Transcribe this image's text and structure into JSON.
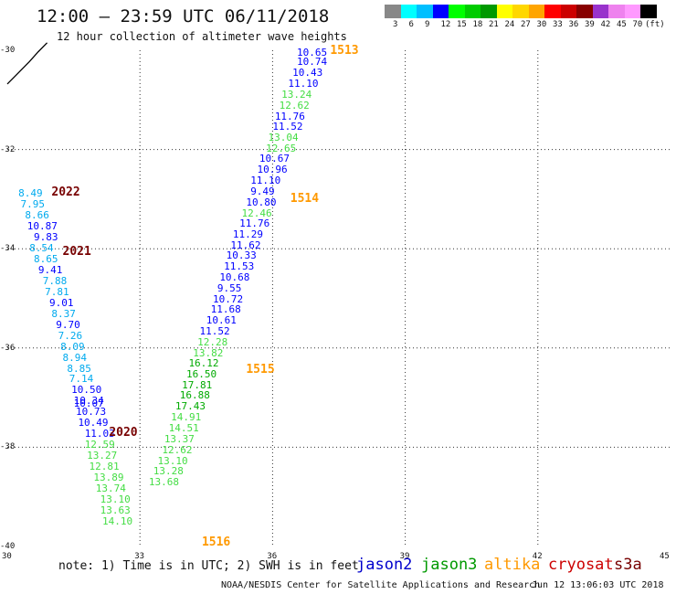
{
  "header": {
    "title": "12:00 – 23:59 UTC 06/11/2018",
    "subtitle": "12 hour collection of altimeter wave heights"
  },
  "legend": {
    "colors": [
      "#888888",
      "#00ffff",
      "#00bfff",
      "#0000ff",
      "#00ff00",
      "#00cc00",
      "#009900",
      "#ffff00",
      "#ffd700",
      "#ffa500",
      "#ff0000",
      "#cc0000",
      "#880000",
      "#9933cc",
      "#ee82ee",
      "#ff99ff",
      "#000000"
    ],
    "labels": [
      "3",
      "6",
      "9",
      "12",
      "15",
      "18",
      "21",
      "24",
      "27",
      "30",
      "33",
      "36",
      "39",
      "42",
      "45",
      "70",
      "(ft)"
    ]
  },
  "axes": {
    "x_ticks": [
      "30",
      "33",
      "36",
      "39",
      "42",
      "45"
    ],
    "y_ticks": [
      "-30",
      "-32",
      "-34",
      "-36",
      "-38",
      "-40"
    ]
  },
  "colors": {
    "jason2": "#0000cc",
    "jason3": "#009900",
    "altika": "#ff9900",
    "cryosat": "#cc0000",
    "s3a": "#770000"
  },
  "chart_data": {
    "type": "scatter",
    "x_range": [
      30,
      45
    ],
    "y_range": [
      -40,
      -30
    ],
    "grid": true,
    "pass_labels": [
      {
        "text": "1513",
        "lon": 37.3,
        "lat": -30.0,
        "sat": "altika"
      },
      {
        "text": "1514",
        "lon": 36.4,
        "lat": -32.98,
        "sat": "altika"
      },
      {
        "text": "1515",
        "lon": 35.4,
        "lat": -36.42,
        "sat": "altika"
      },
      {
        "text": "1516",
        "lon": 34.4,
        "lat": -39.9,
        "sat": "altika"
      },
      {
        "text": "2022",
        "lon": 31.0,
        "lat": -32.85,
        "sat": "s3a"
      },
      {
        "text": "2021",
        "lon": 31.25,
        "lat": -34.05,
        "sat": "s3a"
      },
      {
        "text": "2020",
        "lon": 32.3,
        "lat": -37.7,
        "sat": "s3a"
      }
    ],
    "tracks": [
      {
        "points": [
          {
            "lon": 36.55,
            "lat": -30.03,
            "text": "10.65",
            "color": "#0000ff"
          },
          {
            "lon": 36.55,
            "lat": -30.23,
            "text": "10.74",
            "color": "#0000ff"
          },
          {
            "lon": 36.45,
            "lat": -30.44,
            "text": "10.43",
            "color": "#0000ff"
          },
          {
            "lon": 36.35,
            "lat": -30.66,
            "text": "11.10",
            "color": "#0000ff"
          },
          {
            "lon": 36.2,
            "lat": -30.88,
            "text": "13.24",
            "color": "#44dd44"
          },
          {
            "lon": 36.15,
            "lat": -31.1,
            "text": "12.62",
            "color": "#44dd44"
          },
          {
            "lon": 36.05,
            "lat": -31.32,
            "text": "11.76",
            "color": "#0000ff"
          },
          {
            "lon": 36.0,
            "lat": -31.53,
            "text": "11.52",
            "color": "#0000ff"
          },
          {
            "lon": 35.9,
            "lat": -31.75,
            "text": "13.04",
            "color": "#44dd44"
          },
          {
            "lon": 35.85,
            "lat": -31.97,
            "text": "12.65",
            "color": "#44dd44"
          },
          {
            "lon": 35.7,
            "lat": -32.18,
            "text": "10.67",
            "color": "#0000ff"
          },
          {
            "lon": 35.65,
            "lat": -32.4,
            "text": "10.96",
            "color": "#0000ff"
          },
          {
            "lon": 35.5,
            "lat": -32.62,
            "text": "11.10",
            "color": "#0000ff"
          },
          {
            "lon": 35.5,
            "lat": -32.84,
            "text": "9.49",
            "color": "#0000ff"
          },
          {
            "lon": 35.4,
            "lat": -33.05,
            "text": "10.80",
            "color": "#0000ff"
          },
          {
            "lon": 35.3,
            "lat": -33.27,
            "text": "12.46",
            "color": "#44dd44"
          },
          {
            "lon": 35.25,
            "lat": -33.48,
            "text": "11.76",
            "color": "#0000ff"
          },
          {
            "lon": 35.1,
            "lat": -33.7,
            "text": "11.29",
            "color": "#0000ff"
          },
          {
            "lon": 35.05,
            "lat": -33.92,
            "text": "11.62",
            "color": "#0000ff"
          },
          {
            "lon": 34.95,
            "lat": -34.13,
            "text": "10.33",
            "color": "#0000ff"
          },
          {
            "lon": 34.9,
            "lat": -34.35,
            "text": "11.53",
            "color": "#0000ff"
          },
          {
            "lon": 34.8,
            "lat": -34.57,
            "text": "10.68",
            "color": "#0000ff"
          },
          {
            "lon": 34.75,
            "lat": -34.79,
            "text": "9.55",
            "color": "#0000ff"
          },
          {
            "lon": 34.65,
            "lat": -35.0,
            "text": "10.72",
            "color": "#0000ff"
          },
          {
            "lon": 34.6,
            "lat": -35.22,
            "text": "11.68",
            "color": "#0000ff"
          },
          {
            "lon": 34.5,
            "lat": -35.43,
            "text": "10.61",
            "color": "#0000ff"
          },
          {
            "lon": 34.35,
            "lat": -35.65,
            "text": "11.52",
            "color": "#0000ff"
          },
          {
            "lon": 34.3,
            "lat": -35.87,
            "text": "12.28",
            "color": "#44dd44"
          },
          {
            "lon": 34.2,
            "lat": -36.09,
            "text": "13.82",
            "color": "#44dd44"
          },
          {
            "lon": 34.1,
            "lat": -36.3,
            "text": "16.12",
            "color": "#00aa00"
          },
          {
            "lon": 34.05,
            "lat": -36.52,
            "text": "16.50",
            "color": "#00aa00"
          },
          {
            "lon": 33.95,
            "lat": -36.74,
            "text": "17.81",
            "color": "#00aa00"
          },
          {
            "lon": 33.9,
            "lat": -36.95,
            "text": "16.88",
            "color": "#00aa00"
          },
          {
            "lon": 33.8,
            "lat": -37.17,
            "text": "17.43",
            "color": "#00aa00"
          },
          {
            "lon": 33.7,
            "lat": -37.39,
            "text": "14.91",
            "color": "#44dd44"
          },
          {
            "lon": 33.65,
            "lat": -37.6,
            "text": "14.51",
            "color": "#44dd44"
          },
          {
            "lon": 33.55,
            "lat": -37.82,
            "text": "13.37",
            "color": "#44dd44"
          },
          {
            "lon": 33.5,
            "lat": -38.04,
            "text": "12.62",
            "color": "#44dd44"
          },
          {
            "lon": 33.4,
            "lat": -38.26,
            "text": "13.10",
            "color": "#44dd44"
          },
          {
            "lon": 33.3,
            "lat": -38.48,
            "text": "13.28",
            "color": "#44dd44"
          },
          {
            "lon": 33.2,
            "lat": -38.69,
            "text": "13.68",
            "color": "#44dd44"
          }
        ]
      },
      {
        "points": [
          {
            "lon": 30.25,
            "lat": -32.88,
            "text": "8.49",
            "color": "#00aaee"
          },
          {
            "lon": 30.3,
            "lat": -33.1,
            "text": "7.95",
            "color": "#00aaee"
          },
          {
            "lon": 30.4,
            "lat": -33.32,
            "text": "8.66",
            "color": "#00aaee"
          },
          {
            "lon": 30.45,
            "lat": -33.54,
            "text": "10.87",
            "color": "#0000ff"
          },
          {
            "lon": 30.6,
            "lat": -33.76,
            "text": "9.83",
            "color": "#0000ff"
          },
          {
            "lon": 30.5,
            "lat": -33.98,
            "text": "8.54",
            "color": "#00aaee"
          },
          {
            "lon": 30.6,
            "lat": -34.2,
            "text": "8.65",
            "color": "#00aaee"
          },
          {
            "lon": 30.7,
            "lat": -34.42,
            "text": "9.41",
            "color": "#0000ff"
          },
          {
            "lon": 30.8,
            "lat": -34.64,
            "text": "7.88",
            "color": "#00aaee"
          },
          {
            "lon": 30.85,
            "lat": -34.86,
            "text": "7.81",
            "color": "#00aaee"
          },
          {
            "lon": 30.95,
            "lat": -35.08,
            "text": "9.01",
            "color": "#0000ff"
          },
          {
            "lon": 31.0,
            "lat": -35.3,
            "text": "8.37",
            "color": "#00aaee"
          },
          {
            "lon": 31.1,
            "lat": -35.52,
            "text": "9.70",
            "color": "#0000ff"
          },
          {
            "lon": 31.15,
            "lat": -35.74,
            "text": "7.26",
            "color": "#00aaee"
          },
          {
            "lon": 31.2,
            "lat": -35.96,
            "text": "8.09",
            "color": "#00aaee"
          },
          {
            "lon": 31.25,
            "lat": -36.18,
            "text": "8.94",
            "color": "#00aaee"
          },
          {
            "lon": 31.35,
            "lat": -36.4,
            "text": "8.85",
            "color": "#00aaee"
          },
          {
            "lon": 31.4,
            "lat": -36.62,
            "text": "7.14",
            "color": "#00aaee"
          },
          {
            "lon": 31.45,
            "lat": -36.84,
            "text": "10.50",
            "color": "#0000ff"
          },
          {
            "lon": 31.5,
            "lat": -37.06,
            "text": "10.34",
            "color": "#0000ff"
          },
          {
            "lon": 31.5,
            "lat": -37.1,
            "text": "10.07",
            "color": "#0000ff"
          },
          {
            "lon": 31.55,
            "lat": -37.28,
            "text": "10.73",
            "color": "#0000ff"
          },
          {
            "lon": 31.6,
            "lat": -37.5,
            "text": "10.49",
            "color": "#0000ff"
          },
          {
            "lon": 31.75,
            "lat": -37.72,
            "text": "11.03",
            "color": "#0000ff"
          },
          {
            "lon": 31.75,
            "lat": -37.94,
            "text": "12.59",
            "color": "#44dd44"
          },
          {
            "lon": 31.8,
            "lat": -38.16,
            "text": "13.27",
            "color": "#44dd44"
          },
          {
            "lon": 31.85,
            "lat": -38.38,
            "text": "12.81",
            "color": "#44dd44"
          },
          {
            "lon": 31.95,
            "lat": -38.6,
            "text": "13.89",
            "color": "#44dd44"
          },
          {
            "lon": 32.0,
            "lat": -38.82,
            "text": "13.74",
            "color": "#44dd44"
          },
          {
            "lon": 32.1,
            "lat": -39.04,
            "text": "13.10",
            "color": "#44dd44"
          },
          {
            "lon": 32.1,
            "lat": -39.26,
            "text": "13.63",
            "color": "#44dd44"
          },
          {
            "lon": 32.15,
            "lat": -39.48,
            "text": "14.10",
            "color": "#44dd44"
          }
        ]
      }
    ],
    "coastline": [
      [
        30.0,
        -30.68
      ],
      [
        30.2,
        -30.5
      ],
      [
        30.5,
        -30.23
      ],
      [
        30.7,
        -30.03
      ],
      [
        30.9,
        -29.85
      ]
    ]
  },
  "footer": {
    "note": "note: 1) Time is in UTC; 2) SWH is in feet",
    "satellites": [
      {
        "name": "jason2",
        "color": "#0000cc"
      },
      {
        "name": "jason3",
        "color": "#009900"
      },
      {
        "name": "altika",
        "color": "#ff9900"
      },
      {
        "name": "cryosat",
        "color": "#cc0000"
      },
      {
        "name": "s3a",
        "color": "#770000"
      }
    ],
    "credit": "NOAA/NESDIS Center for Satellite Applications and Research",
    "updated": "Jun 12 13:06:03 UTC 2018"
  }
}
